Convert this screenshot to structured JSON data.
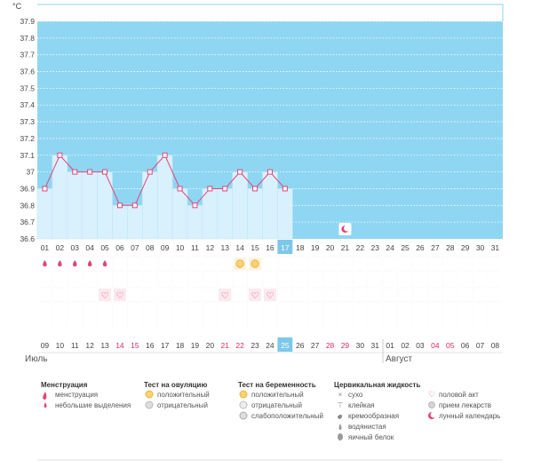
{
  "chart_data": {
    "type": "line",
    "unit_label": "°C",
    "ylim": [
      36.6,
      37.9
    ],
    "y_ticks": [
      "36.6",
      "36.7",
      "36.8",
      "36.9",
      "37",
      "37.1",
      "37.2",
      "37.3",
      "37.4",
      "37.5",
      "37.6",
      "37.7",
      "37.8",
      "37.9"
    ],
    "cycle_days": [
      "01",
      "02",
      "03",
      "04",
      "05",
      "06",
      "07",
      "08",
      "09",
      "10",
      "11",
      "12",
      "13",
      "14",
      "15",
      "16",
      "17",
      "18",
      "19",
      "20",
      "21",
      "22",
      "23",
      "24",
      "25",
      "26",
      "27",
      "28",
      "29",
      "30",
      "31"
    ],
    "series": [
      {
        "values": [
          36.9,
          37.1,
          37.0,
          37.0,
          37.0,
          36.8,
          36.8,
          37.0,
          37.1,
          36.9,
          36.8,
          36.9,
          36.9,
          37.0,
          36.9,
          37.0,
          36.9
        ]
      }
    ],
    "today_index": 16,
    "grid": true
  },
  "markers": {
    "menstruation_days": [
      0,
      1,
      2,
      3,
      4
    ],
    "ovulation_positive_days": [
      13,
      14
    ],
    "intercourse_days": [
      4,
      5,
      12,
      14,
      15
    ],
    "lunar_day": 20
  },
  "calendar": {
    "dates": [
      "09",
      "10",
      "11",
      "12",
      "13",
      "14",
      "15",
      "16",
      "17",
      "18",
      "19",
      "20",
      "21",
      "22",
      "23",
      "24",
      "25",
      "26",
      "27",
      "28",
      "29",
      "30",
      "31",
      "01",
      "02",
      "03",
      "04",
      "05",
      "06",
      "07",
      "08"
    ],
    "red_indices": [
      5,
      6,
      12,
      13,
      19,
      20,
      26,
      27
    ],
    "month_break_index": 23,
    "month_july": "Июль",
    "month_august": "Август"
  },
  "legend": {
    "menstruation": {
      "title": "Менструация",
      "items": [
        "менструация",
        "небольшие выделения"
      ]
    },
    "ovulation": {
      "title": "Тест на овуляцию",
      "items": [
        "положительный",
        "отрицательный"
      ]
    },
    "pregnancy": {
      "title": "Тест на беременность",
      "items": [
        "положительный",
        "отрицательный",
        "слабоположительный"
      ]
    },
    "cervical": {
      "title": "Цервикальная жидкость",
      "items": [
        "сухо",
        "клейкая",
        "кремообразная",
        "водянистая",
        "яичный белок"
      ]
    },
    "other": {
      "items": [
        "половой акт",
        "прием лекарств",
        "лунный календарь"
      ]
    }
  },
  "colors": {
    "chart_bg": "#8fd6f2",
    "bar_fill": "#d9f1fc",
    "line": "#e0457b",
    "today": "#7cc8ea",
    "weekend": "#e0295a"
  }
}
